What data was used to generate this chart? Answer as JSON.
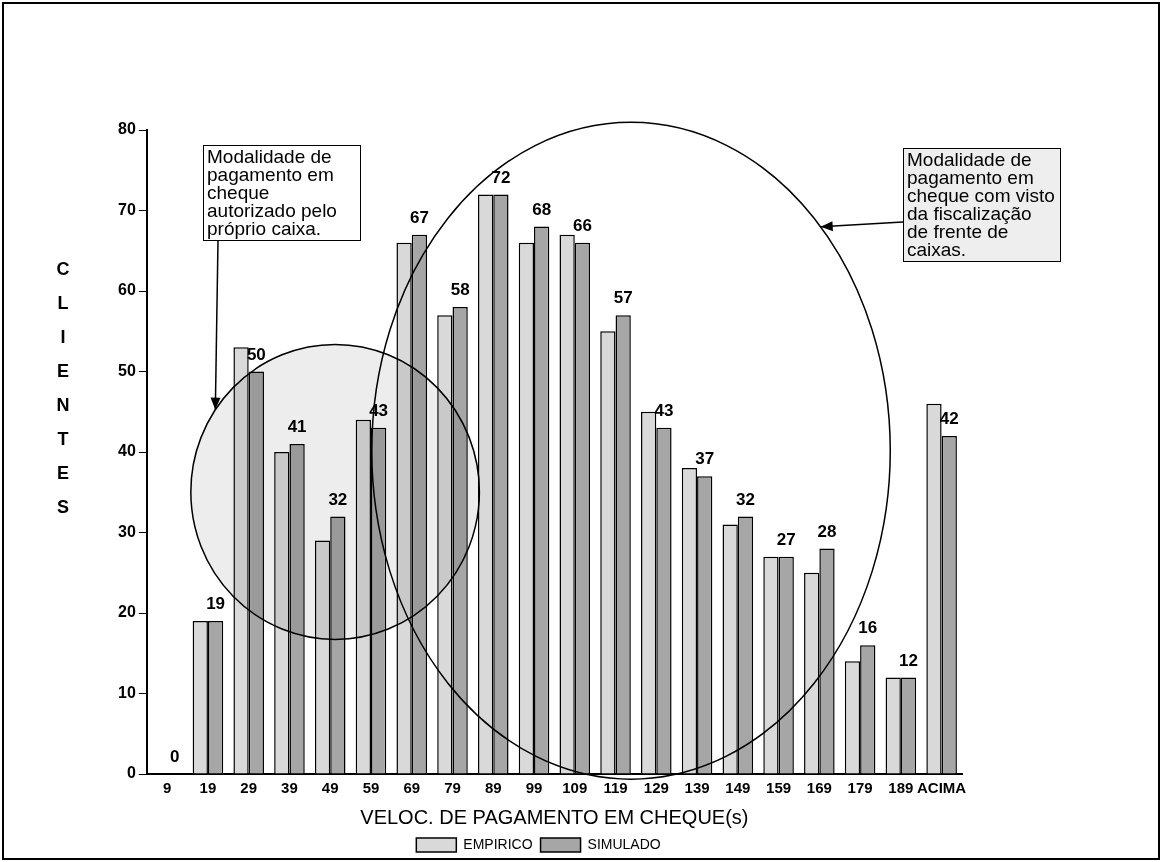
{
  "chart_data": {
    "type": "bar",
    "xlabel": "VELOC. DE PAGAMENTO EM CHEQUE(s)",
    "ylabel": "CLIENTES",
    "categories": [
      "9",
      "19",
      "29",
      "39",
      "49",
      "59",
      "69",
      "79",
      "89",
      "99",
      "109",
      "119",
      "129",
      "139",
      "149",
      "159",
      "169",
      "179",
      "189",
      "ACIMA"
    ],
    "series": [
      {
        "name": "EMPIRICO",
        "color": "#d9d9d9",
        "values": [
          0,
          19,
          53,
          40,
          29,
          44,
          66,
          57,
          72,
          66,
          67,
          55,
          45,
          38,
          31,
          27,
          25,
          14,
          12,
          46
        ]
      },
      {
        "name": "SIMULADO",
        "color": "#a6a6a6",
        "values": [
          0,
          19,
          50,
          41,
          32,
          43,
          67,
          58,
          72,
          68,
          66,
          57,
          43,
          37,
          32,
          27,
          28,
          16,
          12,
          42
        ],
        "value_labels": [
          "0",
          "19",
          "50",
          "41",
          "32",
          "43",
          "67",
          "58",
          "72",
          "68",
          "66",
          "57",
          "43",
          "37",
          "32",
          "27",
          "28",
          "16",
          "12",
          "42"
        ]
      }
    ],
    "ylim": [
      0,
      80
    ],
    "yticks": [
      0,
      10,
      20,
      30,
      40,
      50,
      60,
      70,
      80
    ],
    "grid": false,
    "legend": "bottom",
    "annotations": [
      "Modalidade de pagamento em cheque autorizado pelo próprio caixa.",
      "Modalidade de pagamento em cheque com visto da fiscalização de frente de caixas."
    ]
  }
}
